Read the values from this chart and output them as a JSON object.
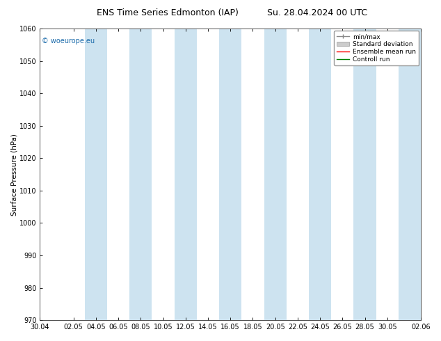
{
  "title_left": "ENS Time Series Edmonton (IAP)",
  "title_right": "Su. 28.04.2024 00 UTC",
  "ylabel": "Surface Pressure (hPa)",
  "ylim": [
    970,
    1060
  ],
  "yticks": [
    970,
    980,
    990,
    1000,
    1010,
    1020,
    1030,
    1040,
    1050,
    1060
  ],
  "x_labels": [
    "30.04",
    "02.05",
    "04.05",
    "06.05",
    "08.05",
    "10.05",
    "12.05",
    "14.05",
    "16.05",
    "18.05",
    "20.05",
    "22.05",
    "24.05",
    "26.05",
    "28.05",
    "30.05",
    "02.06"
  ],
  "band_color": "#cde3f0",
  "band_alpha": 1.0,
  "bg_color": "#ffffff",
  "ax_bg_color": "#ffffff",
  "grid_color": "#bbbbbb",
  "watermark": "© woeurope.eu",
  "watermark_color": "#1a6aaa",
  "legend_items": [
    "min/max",
    "Standard deviation",
    "Ensemble mean run",
    "Controll run"
  ],
  "legend_colors": [
    "#888888",
    "#aaaaaa",
    "#ff0000",
    "#008000"
  ],
  "title_fontsize": 9,
  "label_fontsize": 7.5,
  "tick_fontsize": 7,
  "watermark_fontsize": 7,
  "legend_fontsize": 6.5,
  "figsize": [
    6.34,
    4.9
  ],
  "dpi": 100
}
